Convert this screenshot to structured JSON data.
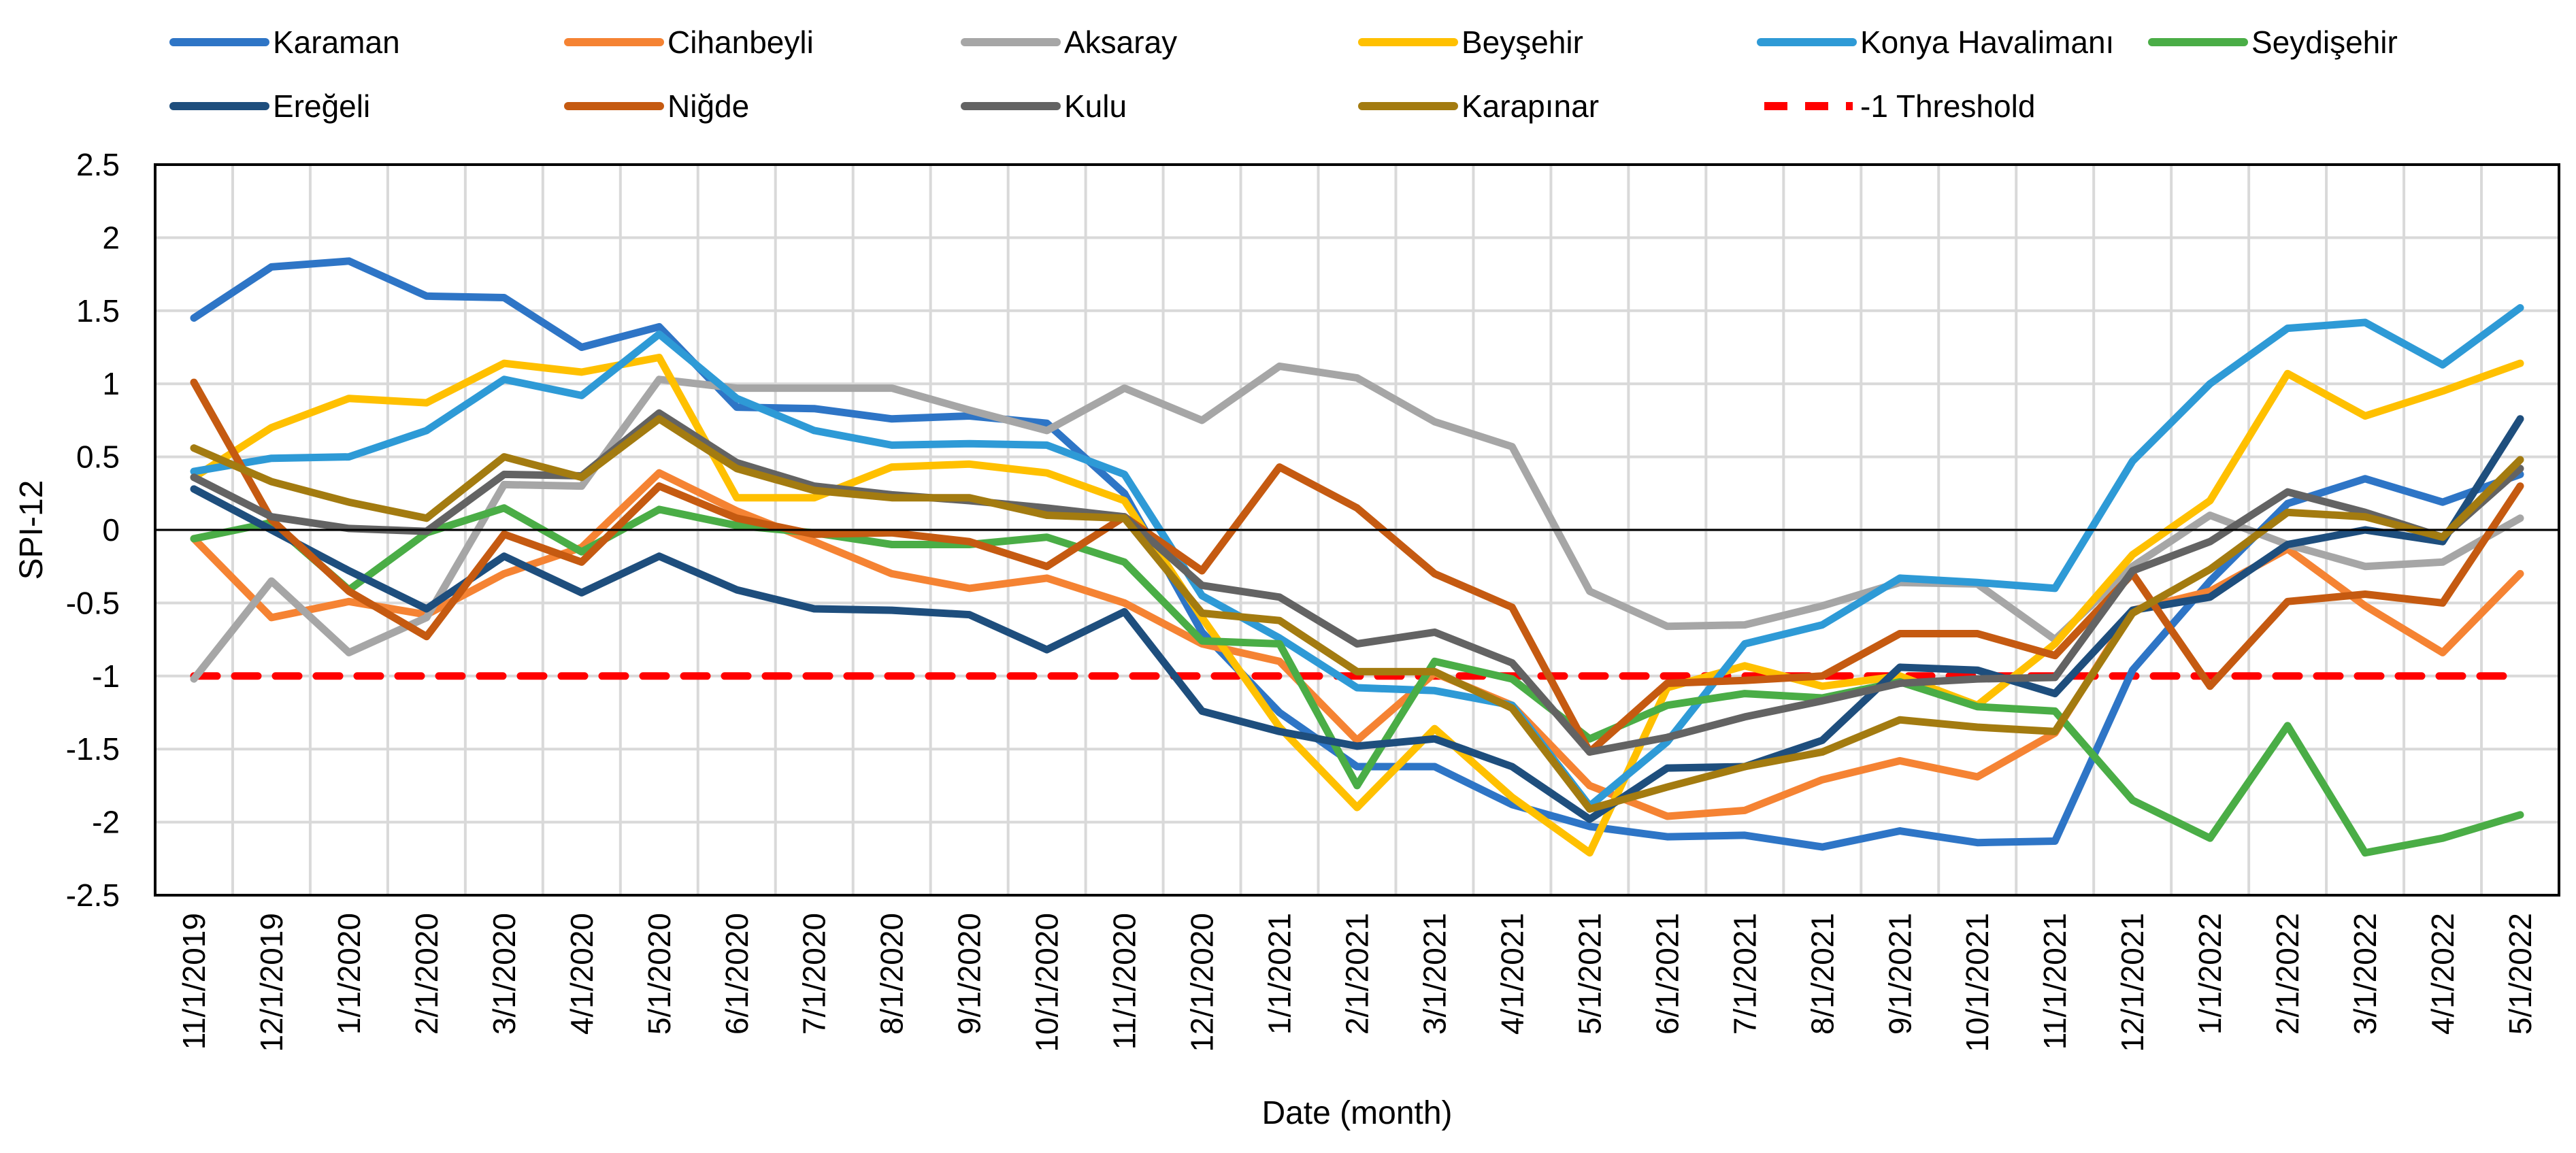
{
  "chart_data": {
    "type": "line",
    "title": "",
    "xlabel": "Date (month)",
    "ylabel": "SPI-12",
    "ylim": [
      -2.5,
      2.5
    ],
    "ytick_step": 0.5,
    "yticks": [
      "2.5",
      "2",
      "1.5",
      "1",
      "0.5",
      "0",
      "-0.5",
      "-1",
      "-1.5",
      "-2",
      "-2.5"
    ],
    "grid": true,
    "legend_position": "top",
    "categories": [
      "11/1/2019",
      "12/1/2019",
      "1/1/2020",
      "2/1/2020",
      "3/1/2020",
      "4/1/2020",
      "5/1/2020",
      "6/1/2020",
      "7/1/2020",
      "8/1/2020",
      "9/1/2020",
      "10/1/2020",
      "11/1/2020",
      "12/1/2020",
      "1/1/2021",
      "2/1/2021",
      "3/1/2021",
      "4/1/2021",
      "5/1/2021",
      "6/1/2021",
      "7/1/2021",
      "8/1/2021",
      "9/1/2021",
      "10/1/2021",
      "11/1/2021",
      "12/1/2021",
      "1/1/2022",
      "2/1/2022",
      "3/1/2022",
      "4/1/2022",
      "5/1/2022"
    ],
    "series": [
      {
        "name": "Karaman",
        "color": "#2e75c6",
        "values": [
          1.45,
          1.8,
          1.84,
          1.6,
          1.59,
          1.25,
          1.39,
          0.84,
          0.83,
          0.76,
          0.78,
          0.73,
          0.25,
          -0.7,
          -1.25,
          -1.62,
          -1.62,
          -1.88,
          -2.03,
          -2.1,
          -2.09,
          -2.17,
          -2.06,
          -2.14,
          -2.13,
          -0.96,
          -0.35,
          0.18,
          0.35,
          0.19,
          0.38
        ]
      },
      {
        "name": "Cihanbeyli",
        "color": "#f58333",
        "values": [
          -0.06,
          -0.6,
          -0.49,
          -0.58,
          -0.3,
          -0.12,
          0.39,
          0.13,
          -0.08,
          -0.3,
          -0.4,
          -0.33,
          -0.5,
          -0.78,
          -0.9,
          -1.44,
          -0.98,
          -1.2,
          -1.75,
          -1.96,
          -1.92,
          -1.71,
          -1.58,
          -1.69,
          -1.39,
          -0.55,
          -0.42,
          -0.13,
          -0.52,
          -0.84,
          -0.3
        ]
      },
      {
        "name": "Aksaray",
        "color": "#a6a6a6",
        "values": [
          -1.02,
          -0.35,
          -0.84,
          -0.6,
          0.31,
          0.3,
          1.03,
          0.97,
          0.97,
          0.97,
          0.82,
          0.68,
          0.97,
          0.75,
          1.12,
          1.04,
          0.74,
          0.57,
          -0.42,
          -0.66,
          -0.65,
          -0.52,
          -0.36,
          -0.37,
          -0.75,
          -0.25,
          0.1,
          -0.1,
          -0.25,
          -0.22,
          0.08
        ]
      },
      {
        "name": "Beyşehir",
        "color": "#ffc000",
        "values": [
          0.36,
          0.7,
          0.9,
          0.87,
          1.14,
          1.08,
          1.18,
          0.22,
          0.22,
          0.43,
          0.45,
          0.39,
          0.2,
          -0.6,
          -1.35,
          -1.9,
          -1.36,
          -1.83,
          -2.21,
          -1.08,
          -0.93,
          -1.07,
          -1.0,
          -1.2,
          -0.78,
          -0.17,
          0.2,
          1.07,
          0.78,
          0.95,
          1.14
        ]
      },
      {
        "name": "Konya Havalimanı",
        "color": "#2e9ad6",
        "values": [
          0.4,
          0.49,
          0.5,
          0.68,
          1.03,
          0.92,
          1.34,
          0.9,
          0.68,
          0.58,
          0.59,
          0.58,
          0.38,
          -0.45,
          -0.74,
          -1.08,
          -1.1,
          -1.2,
          -1.89,
          -1.45,
          -0.78,
          -0.65,
          -0.33,
          -0.36,
          -0.4,
          0.47,
          1.0,
          1.38,
          1.42,
          1.13,
          1.52
        ]
      },
      {
        "name": "Seydişehir",
        "color": "#4aad46",
        "values": [
          -0.06,
          0.05,
          -0.41,
          -0.02,
          0.15,
          -0.15,
          0.14,
          0.03,
          -0.02,
          -0.1,
          -0.1,
          -0.05,
          -0.22,
          -0.76,
          -0.78,
          -1.75,
          -0.9,
          -1.02,
          -1.43,
          -1.2,
          -1.12,
          -1.15,
          -1.04,
          -1.21,
          -1.24,
          -1.85,
          -2.11,
          -1.34,
          -2.21,
          -2.11,
          -1.95
        ]
      },
      {
        "name": "Ereğeli",
        "color": "#1e4e7d",
        "values": [
          0.28,
          0.0,
          -0.28,
          -0.54,
          -0.18,
          -0.43,
          -0.18,
          -0.41,
          -0.54,
          -0.55,
          -0.58,
          -0.82,
          -0.56,
          -1.24,
          -1.38,
          -1.48,
          -1.43,
          -1.62,
          -1.98,
          -1.63,
          -1.62,
          -1.44,
          -0.94,
          -0.96,
          -1.12,
          -0.55,
          -0.46,
          -0.1,
          0.0,
          -0.08,
          0.76
        ]
      },
      {
        "name": "Niğde",
        "color": "#c55a11",
        "values": [
          1.01,
          0.07,
          -0.42,
          -0.73,
          -0.03,
          -0.22,
          0.3,
          0.08,
          -0.03,
          -0.02,
          -0.08,
          -0.25,
          0.09,
          -0.28,
          0.43,
          0.15,
          -0.3,
          -0.53,
          -1.52,
          -1.05,
          -1.03,
          -1.0,
          -0.71,
          -0.71,
          -0.86,
          -0.3,
          -1.07,
          -0.49,
          -0.44,
          -0.5,
          0.3
        ]
      },
      {
        "name": "Kulu",
        "color": "#636363",
        "values": [
          0.36,
          0.09,
          0.01,
          -0.01,
          0.38,
          0.37,
          0.8,
          0.46,
          0.3,
          0.24,
          0.2,
          0.15,
          0.09,
          -0.38,
          -0.46,
          -0.78,
          -0.7,
          -0.91,
          -1.52,
          -1.42,
          -1.28,
          -1.17,
          -1.05,
          -1.02,
          -1.01,
          -0.28,
          -0.08,
          0.26,
          0.12,
          -0.05,
          0.42
        ]
      },
      {
        "name": "Karapınar",
        "color": "#a37b10",
        "values": [
          0.56,
          0.33,
          0.19,
          0.08,
          0.5,
          0.36,
          0.76,
          0.42,
          0.27,
          0.22,
          0.22,
          0.1,
          0.08,
          -0.57,
          -0.62,
          -0.97,
          -0.97,
          -1.22,
          -1.91,
          -1.76,
          -1.62,
          -1.52,
          -1.3,
          -1.35,
          -1.38,
          -0.57,
          -0.27,
          0.12,
          0.09,
          -0.05,
          0.48
        ]
      },
      {
        "name": "-1 Threshold",
        "color": "#ff0000",
        "dashed": true,
        "values": [
          -1,
          -1,
          -1,
          -1,
          -1,
          -1,
          -1,
          -1,
          -1,
          -1,
          -1,
          -1,
          -1,
          -1,
          -1,
          -1,
          -1,
          -1,
          -1,
          -1,
          -1,
          -1,
          -1,
          -1,
          -1,
          -1,
          -1,
          -1,
          -1,
          -1,
          -1
        ]
      }
    ]
  }
}
